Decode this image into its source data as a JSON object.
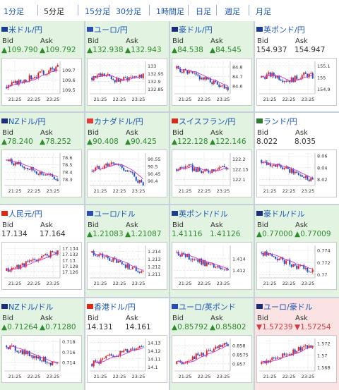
{
  "tabs": [
    {
      "label": "1分足",
      "active": false
    },
    {
      "label": "5分足",
      "active": true
    },
    {
      "label": "15分足",
      "active": false
    },
    {
      "label": "30分足",
      "active": false
    },
    {
      "label": "1時間足",
      "active": false
    },
    {
      "label": "日足",
      "active": false
    },
    {
      "label": "週足",
      "active": false
    },
    {
      "label": "月足",
      "active": false
    }
  ],
  "colors": {
    "up": "#2e8b2e",
    "down": "#d8383f",
    "neutral": "#333333",
    "candle_up": "#e0202a",
    "candle_down": "#1d4fc0",
    "ma_line": "#cc33cc"
  },
  "bid_label": "Bid",
  "ask_label": "Ask",
  "pairs": [
    {
      "name": "米ドル/円",
      "flag": "us",
      "status": "up",
      "bid": "▲109.790",
      "ask": "▲109.792",
      "chart_data": {
        "type": "candlestick",
        "xticks": [
          "21:25",
          "22:25",
          "23:25"
        ],
        "yticks": [
          "109.7",
          "109.6",
          "109.5"
        ],
        "ylim": [
          109.46,
          109.79
        ],
        "trend": "up"
      }
    },
    {
      "name": "ユーロ/円",
      "flag": "eu",
      "status": "up",
      "bid": "▲132.938",
      "ask": "▲132.943",
      "chart_data": {
        "type": "candlestick",
        "xticks": [
          "21:25",
          "22:25",
          "23:25"
        ],
        "yticks": [
          "133",
          "132.95",
          "132.9",
          "132.85"
        ],
        "ylim": [
          132.82,
          133.03
        ],
        "trend": "flat"
      }
    },
    {
      "name": "豪ドル/円",
      "flag": "au",
      "status": "up",
      "bid": "▲84.538",
      "ask": "▲84.545",
      "chart_data": {
        "type": "candlestick",
        "xticks": [
          "21:25",
          "22:25",
          "23:25"
        ],
        "yticks": [
          "84.8",
          "84.7",
          "84.6"
        ],
        "ylim": [
          84.52,
          84.86
        ],
        "trend": "down"
      }
    },
    {
      "name": "英ポンド/円",
      "flag": "gb",
      "status": "neutral",
      "bid": "154.937",
      "ask": "154.947",
      "chart_data": {
        "type": "candlestick",
        "xticks": [
          "21:25",
          "22:25",
          "23:25"
        ],
        "yticks": [
          "155.1",
          "155",
          "154.9"
        ],
        "ylim": [
          154.86,
          155.14
        ],
        "trend": "flat"
      }
    },
    {
      "name": "NZドル/円",
      "flag": "nz",
      "status": "up",
      "bid": "▲78.240",
      "ask": "▲78.252",
      "chart_data": {
        "type": "candlestick",
        "xticks": [
          "21:25",
          "22:25",
          "23:25"
        ],
        "yticks": [
          "78.6",
          "78.5",
          "78.4",
          "78.3"
        ],
        "ylim": [
          78.22,
          78.66
        ],
        "trend": "down"
      }
    },
    {
      "name": "カナダドル/円",
      "flag": "ca",
      "status": "up",
      "bid": "▲90.408",
      "ask": "▲90.425",
      "chart_data": {
        "type": "candlestick",
        "xticks": [
          "21:25",
          "22:25",
          "23:25"
        ],
        "yticks": [
          "90.55",
          "90.5",
          "90.45",
          "90.4"
        ],
        "ylim": [
          90.37,
          90.59
        ],
        "trend": "humpdown"
      }
    },
    {
      "name": "スイスフラン/円",
      "flag": "ch",
      "status": "up",
      "bid": "▲122.128",
      "ask": "▲122.146",
      "chart_data": {
        "type": "candlestick",
        "xticks": [
          "21:25",
          "22:25",
          "23:25"
        ],
        "yticks": [
          "122.2",
          "122.15",
          "122.1"
        ],
        "ylim": [
          122.07,
          122.23
        ],
        "trend": "flat"
      }
    },
    {
      "name": "ランド/円",
      "flag": "za",
      "status": "neutral",
      "bid": "8.022",
      "ask": "8.035",
      "chart_data": {
        "type": "candlestick",
        "xticks": [
          "21:25",
          "22:25",
          "23:25"
        ],
        "yticks": [
          "8.06",
          "8.04",
          "8.02"
        ],
        "ylim": [
          8.01,
          8.065
        ],
        "trend": "down"
      }
    },
    {
      "name": "人民元/円",
      "flag": "cn",
      "status": "neutral",
      "bid": "17.134",
      "ask": "17.164",
      "chart_data": {
        "type": "candlestick",
        "xticks": [
          "21:25",
          "22:25",
          "23:25"
        ],
        "yticks": [
          "17.134",
          "17.132",
          "17.13",
          "17.128",
          "17.126"
        ],
        "ylim": [
          17.124,
          17.135
        ],
        "trend": "up"
      }
    },
    {
      "name": "ユーロ/ドル",
      "flag": "eu",
      "status": "up",
      "bid": "▲1.21083",
      "ask": "▲1.21087",
      "chart_data": {
        "type": "candlestick",
        "xticks": [
          "21:25",
          "22:25",
          "23:25"
        ],
        "yticks": [
          "1.214",
          "1.213",
          "1.212",
          "1.211"
        ],
        "ylim": [
          1.2105,
          1.2148
        ],
        "trend": "down"
      }
    },
    {
      "name": "英ポンド/ドル",
      "flag": "gb",
      "status": "up",
      "bid": "1.41116",
      "ask": "1.41126",
      "chart_data": {
        "type": "candlestick",
        "xticks": [
          "21:25",
          "22:25",
          "23:25"
        ],
        "yticks": [
          "1.414",
          "1.412"
        ],
        "ylim": [
          1.4107,
          1.4163
        ],
        "trend": "down"
      }
    },
    {
      "name": "豪ドル/ドル",
      "flag": "au",
      "status": "up",
      "bid": "▲0.77000",
      "ask": "▲0.77009",
      "chart_data": {
        "type": "candlestick",
        "xticks": [
          "21:25",
          "22:25",
          "23:25"
        ],
        "yticks": [
          "0.774",
          "0.772",
          "0.77"
        ],
        "ylim": [
          0.7695,
          0.7748
        ],
        "trend": "down"
      }
    },
    {
      "name": "NZドル/ドル",
      "flag": "nz",
      "status": "up",
      "bid": "▲0.71264",
      "ask": "▲0.71280",
      "chart_data": {
        "type": "candlestick",
        "xticks": [
          "21:25",
          "22:25",
          "23:25"
        ],
        "yticks": [
          "0.718",
          "0.716",
          "0.714"
        ],
        "ylim": [
          0.7124,
          0.7186
        ],
        "trend": "down"
      }
    },
    {
      "name": "香港ドル/円",
      "flag": "hk",
      "status": "neutral",
      "bid": "14.131",
      "ask": "14.161",
      "chart_data": {
        "type": "candlestick",
        "xticks": [
          "21:25",
          "22:25",
          "23:25"
        ],
        "yticks": [
          "14.13",
          "14.12",
          "14.11",
          "14.1"
        ],
        "ylim": [
          14.095,
          14.135
        ],
        "trend": "up"
      }
    },
    {
      "name": "ユーロ/英ポンド",
      "flag": "eu",
      "status": "up",
      "bid": "▲0.85792",
      "ask": "▲0.85802",
      "chart_data": {
        "type": "candlestick",
        "xticks": [
          "21:25",
          "22:25",
          "23:25"
        ],
        "yticks": [
          "0.858",
          "0.8575",
          "0.857"
        ],
        "ylim": [
          0.8566,
          0.8584
        ],
        "trend": "up"
      }
    },
    {
      "name": "ユーロ/豪ドル",
      "flag": "au",
      "status": "down",
      "bid": "▼1.57239",
      "ask": "▼1.57254",
      "chart_data": {
        "type": "candlestick",
        "xticks": [
          "21:25",
          "22:25",
          "23:25"
        ],
        "yticks": [
          "1.572",
          "1.57",
          "1.568"
        ],
        "ylim": [
          1.5674,
          1.5728
        ],
        "trend": "up"
      }
    }
  ]
}
